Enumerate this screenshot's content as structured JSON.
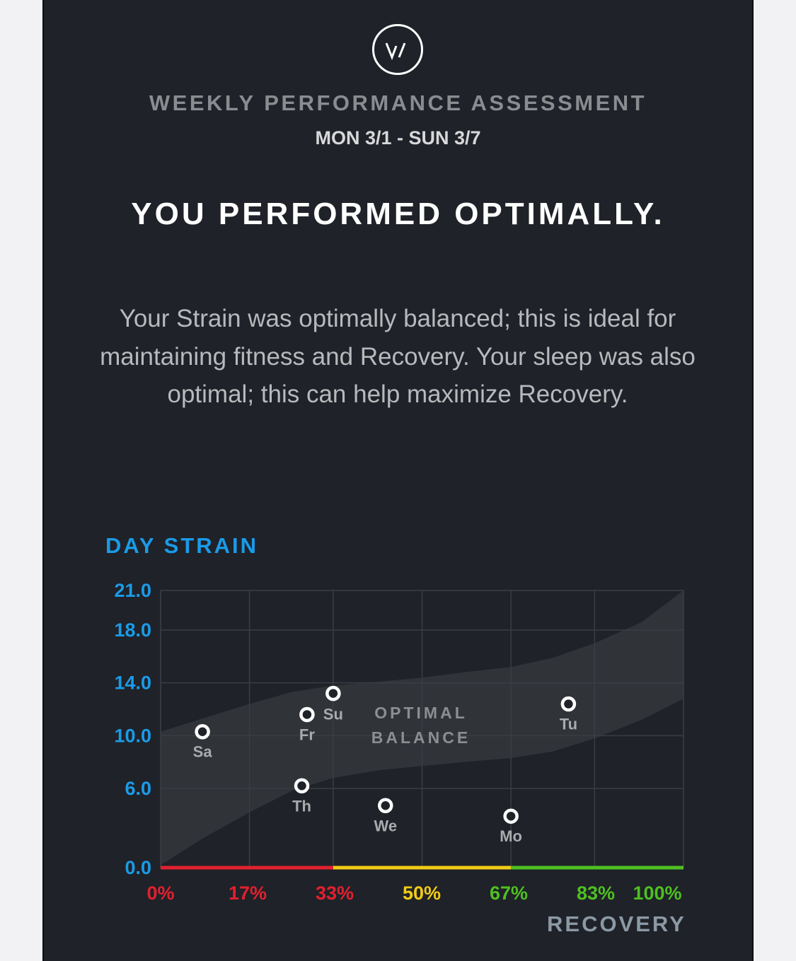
{
  "brand": {
    "logo_icon": "whoop-logo-icon"
  },
  "header": {
    "title": "WEEKLY PERFORMANCE ASSESSMENT",
    "dates": "MON 3/1 - SUN 3/7"
  },
  "headline": "YOU PERFORMED OPTIMALLY.",
  "description": "Your Strain was optimally balanced; this is ideal for maintaining fitness and Recovery. Your sleep was also optimal; this can help maximize Recovery.",
  "chart_data": {
    "type": "scatter",
    "ylabel": "DAY STRAIN",
    "xlabel": "RECOVERY",
    "y_ticks": [
      "21.0",
      "18.0",
      "14.0",
      "10.0",
      "6.0",
      "0.0"
    ],
    "x_ticks": [
      "0%",
      "17%",
      "33%",
      "50%",
      "67%",
      "83%",
      "100%"
    ],
    "ylim": [
      0,
      21
    ],
    "xlim": [
      0,
      100
    ],
    "grid": true,
    "band_label": [
      "OPTIMAL",
      "BALANCE"
    ],
    "band": {
      "x": [
        0,
        8,
        17,
        25,
        33,
        42,
        50,
        58,
        67,
        75,
        83,
        92,
        100
      ],
      "upper": [
        10.3,
        11.3,
        12.4,
        13.3,
        13.8,
        14.1,
        14.4,
        14.8,
        15.2,
        15.9,
        17.0,
        18.6,
        21.0
      ],
      "lower": [
        0.2,
        2.2,
        4.2,
        5.8,
        6.8,
        7.4,
        7.7,
        8.0,
        8.3,
        8.8,
        9.8,
        11.2,
        12.8
      ]
    },
    "points": [
      {
        "day": "Mo",
        "x": 67,
        "y": 3.9
      },
      {
        "day": "Tu",
        "x": 78,
        "y": 12.4
      },
      {
        "day": "We",
        "x": 43,
        "y": 4.7
      },
      {
        "day": "Th",
        "x": 27,
        "y": 6.2
      },
      {
        "day": "Fr",
        "x": 28,
        "y": 11.6
      },
      {
        "day": "Su",
        "x": 33,
        "y": 13.2
      },
      {
        "day": "Sa",
        "x": 8,
        "y": 10.3
      }
    ],
    "colors": {
      "strain": "#1a9be8",
      "low_recovery": "#e2202f",
      "mid_recovery": "#f1cb16",
      "high_recovery": "#4ec021",
      "recovery_label": "#8b99a5",
      "band_label": "#8c8e92"
    }
  }
}
